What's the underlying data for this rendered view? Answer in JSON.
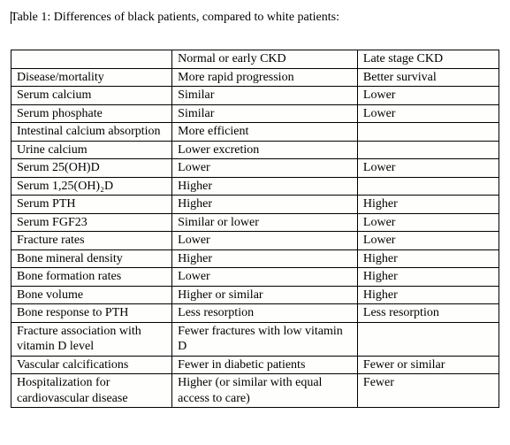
{
  "title": "Table 1: Differences of black patients, compared to white patients:",
  "table": {
    "columns": [
      "",
      "Normal or early CKD",
      "Late stage CKD"
    ],
    "rows": [
      [
        "Disease/mortality",
        "More rapid progression",
        "Better survival"
      ],
      [
        "Serum calcium",
        "Similar",
        "Lower"
      ],
      [
        "Serum phosphate",
        "Similar",
        "Lower"
      ],
      [
        "Intestinal calcium absorption",
        "More efficient",
        ""
      ],
      [
        "Urine calcium",
        "Lower excretion",
        ""
      ],
      [
        "Serum 25(OH)D",
        "Lower",
        "Lower"
      ],
      [
        "Serum 1,25(OH)₂D",
        "Higher",
        ""
      ],
      [
        "Serum PTH",
        "Higher",
        "Higher"
      ],
      [
        "Serum FGF23",
        "Similar or lower",
        "Lower"
      ],
      [
        "Fracture rates",
        "Lower",
        "Lower"
      ],
      [
        "Bone mineral density",
        "Higher",
        "Higher"
      ],
      [
        "Bone formation rates",
        "Lower",
        "Higher"
      ],
      [
        "Bone volume",
        "Higher or similar",
        "Higher"
      ],
      [
        "Bone response to PTH",
        "Less resorption",
        "Less resorption"
      ],
      [
        "Fracture association with vitamin D level",
        "Fewer fractures with low vitamin D",
        ""
      ],
      [
        "Vascular calcifications",
        "Fewer in diabetic patients",
        "Fewer or similar"
      ],
      [
        "Hospitalization for cardiovascular disease",
        "Higher (or similar with equal access to care)",
        "Fewer"
      ]
    ]
  }
}
